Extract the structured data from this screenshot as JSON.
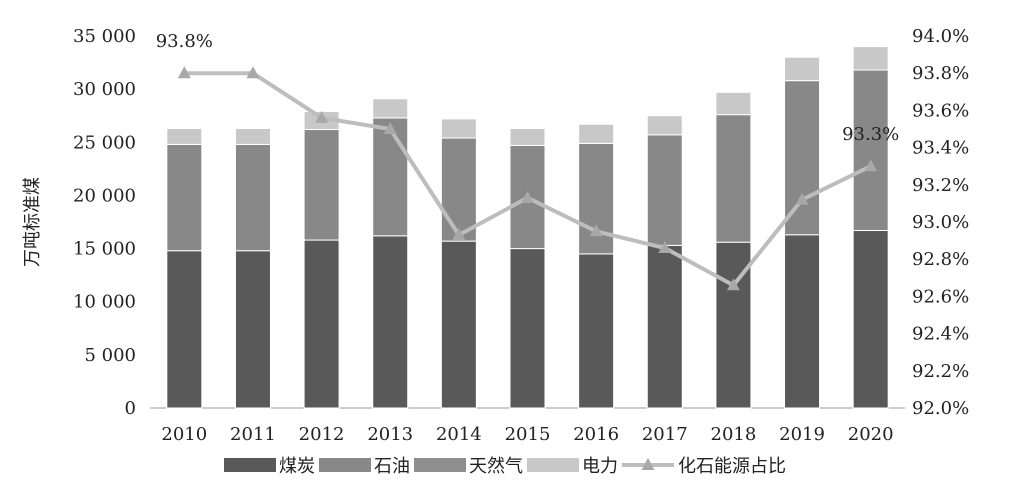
{
  "chart_data": {
    "type": "bar",
    "stacked": true,
    "categories": [
      "2010",
      "2011",
      "2012",
      "2013",
      "2014",
      "2015",
      "2016",
      "2017",
      "2018",
      "2019",
      "2020"
    ],
    "ylabel": "万吨标准煤",
    "ylim": [
      0,
      35000
    ],
    "yticks": [
      "0",
      "5 000",
      "10 000",
      "15 000",
      "20 000",
      "25 000",
      "30 000",
      "35 000"
    ],
    "y2lim": [
      92.0,
      94.0
    ],
    "y2ticks": [
      "92.0%",
      "92.2%",
      "92.4%",
      "92.6%",
      "92.8%",
      "93.0%",
      "93.2%",
      "93.4%",
      "93.6%",
      "93.8%",
      "94.0%"
    ],
    "grid": false,
    "legend_position": "bottom",
    "series": [
      {
        "name": "煤炭",
        "color": "#595959",
        "values": [
          14800,
          14800,
          15800,
          16200,
          15700,
          15000,
          14500,
          15300,
          15600,
          16300,
          16700
        ]
      },
      {
        "name": "石油",
        "color": "#888888",
        "values": [
          10000,
          10000,
          10400,
          11100,
          9700,
          9700,
          10400,
          10400,
          12000,
          14500,
          15100
        ]
      },
      {
        "name": "天然气",
        "color": "#8e8e8e",
        "values": [
          0,
          0,
          0,
          0,
          0,
          0,
          0,
          0,
          0,
          0,
          0
        ]
      },
      {
        "name": "电力",
        "color": "#c8c8c8",
        "values": [
          1500,
          1500,
          1700,
          1800,
          1800,
          1600,
          1800,
          1800,
          2100,
          2200,
          2200
        ]
      }
    ],
    "line_series": {
      "name": "化石能源占比",
      "color": "#bdbdbd",
      "axis": "right",
      "values": [
        93.8,
        93.8,
        93.56,
        93.5,
        92.93,
        93.13,
        92.95,
        92.86,
        92.66,
        93.12,
        93.3
      ]
    },
    "annotations": [
      {
        "category": "2010",
        "text": "93.8%"
      },
      {
        "category": "2020",
        "text": "93.3%"
      }
    ]
  }
}
